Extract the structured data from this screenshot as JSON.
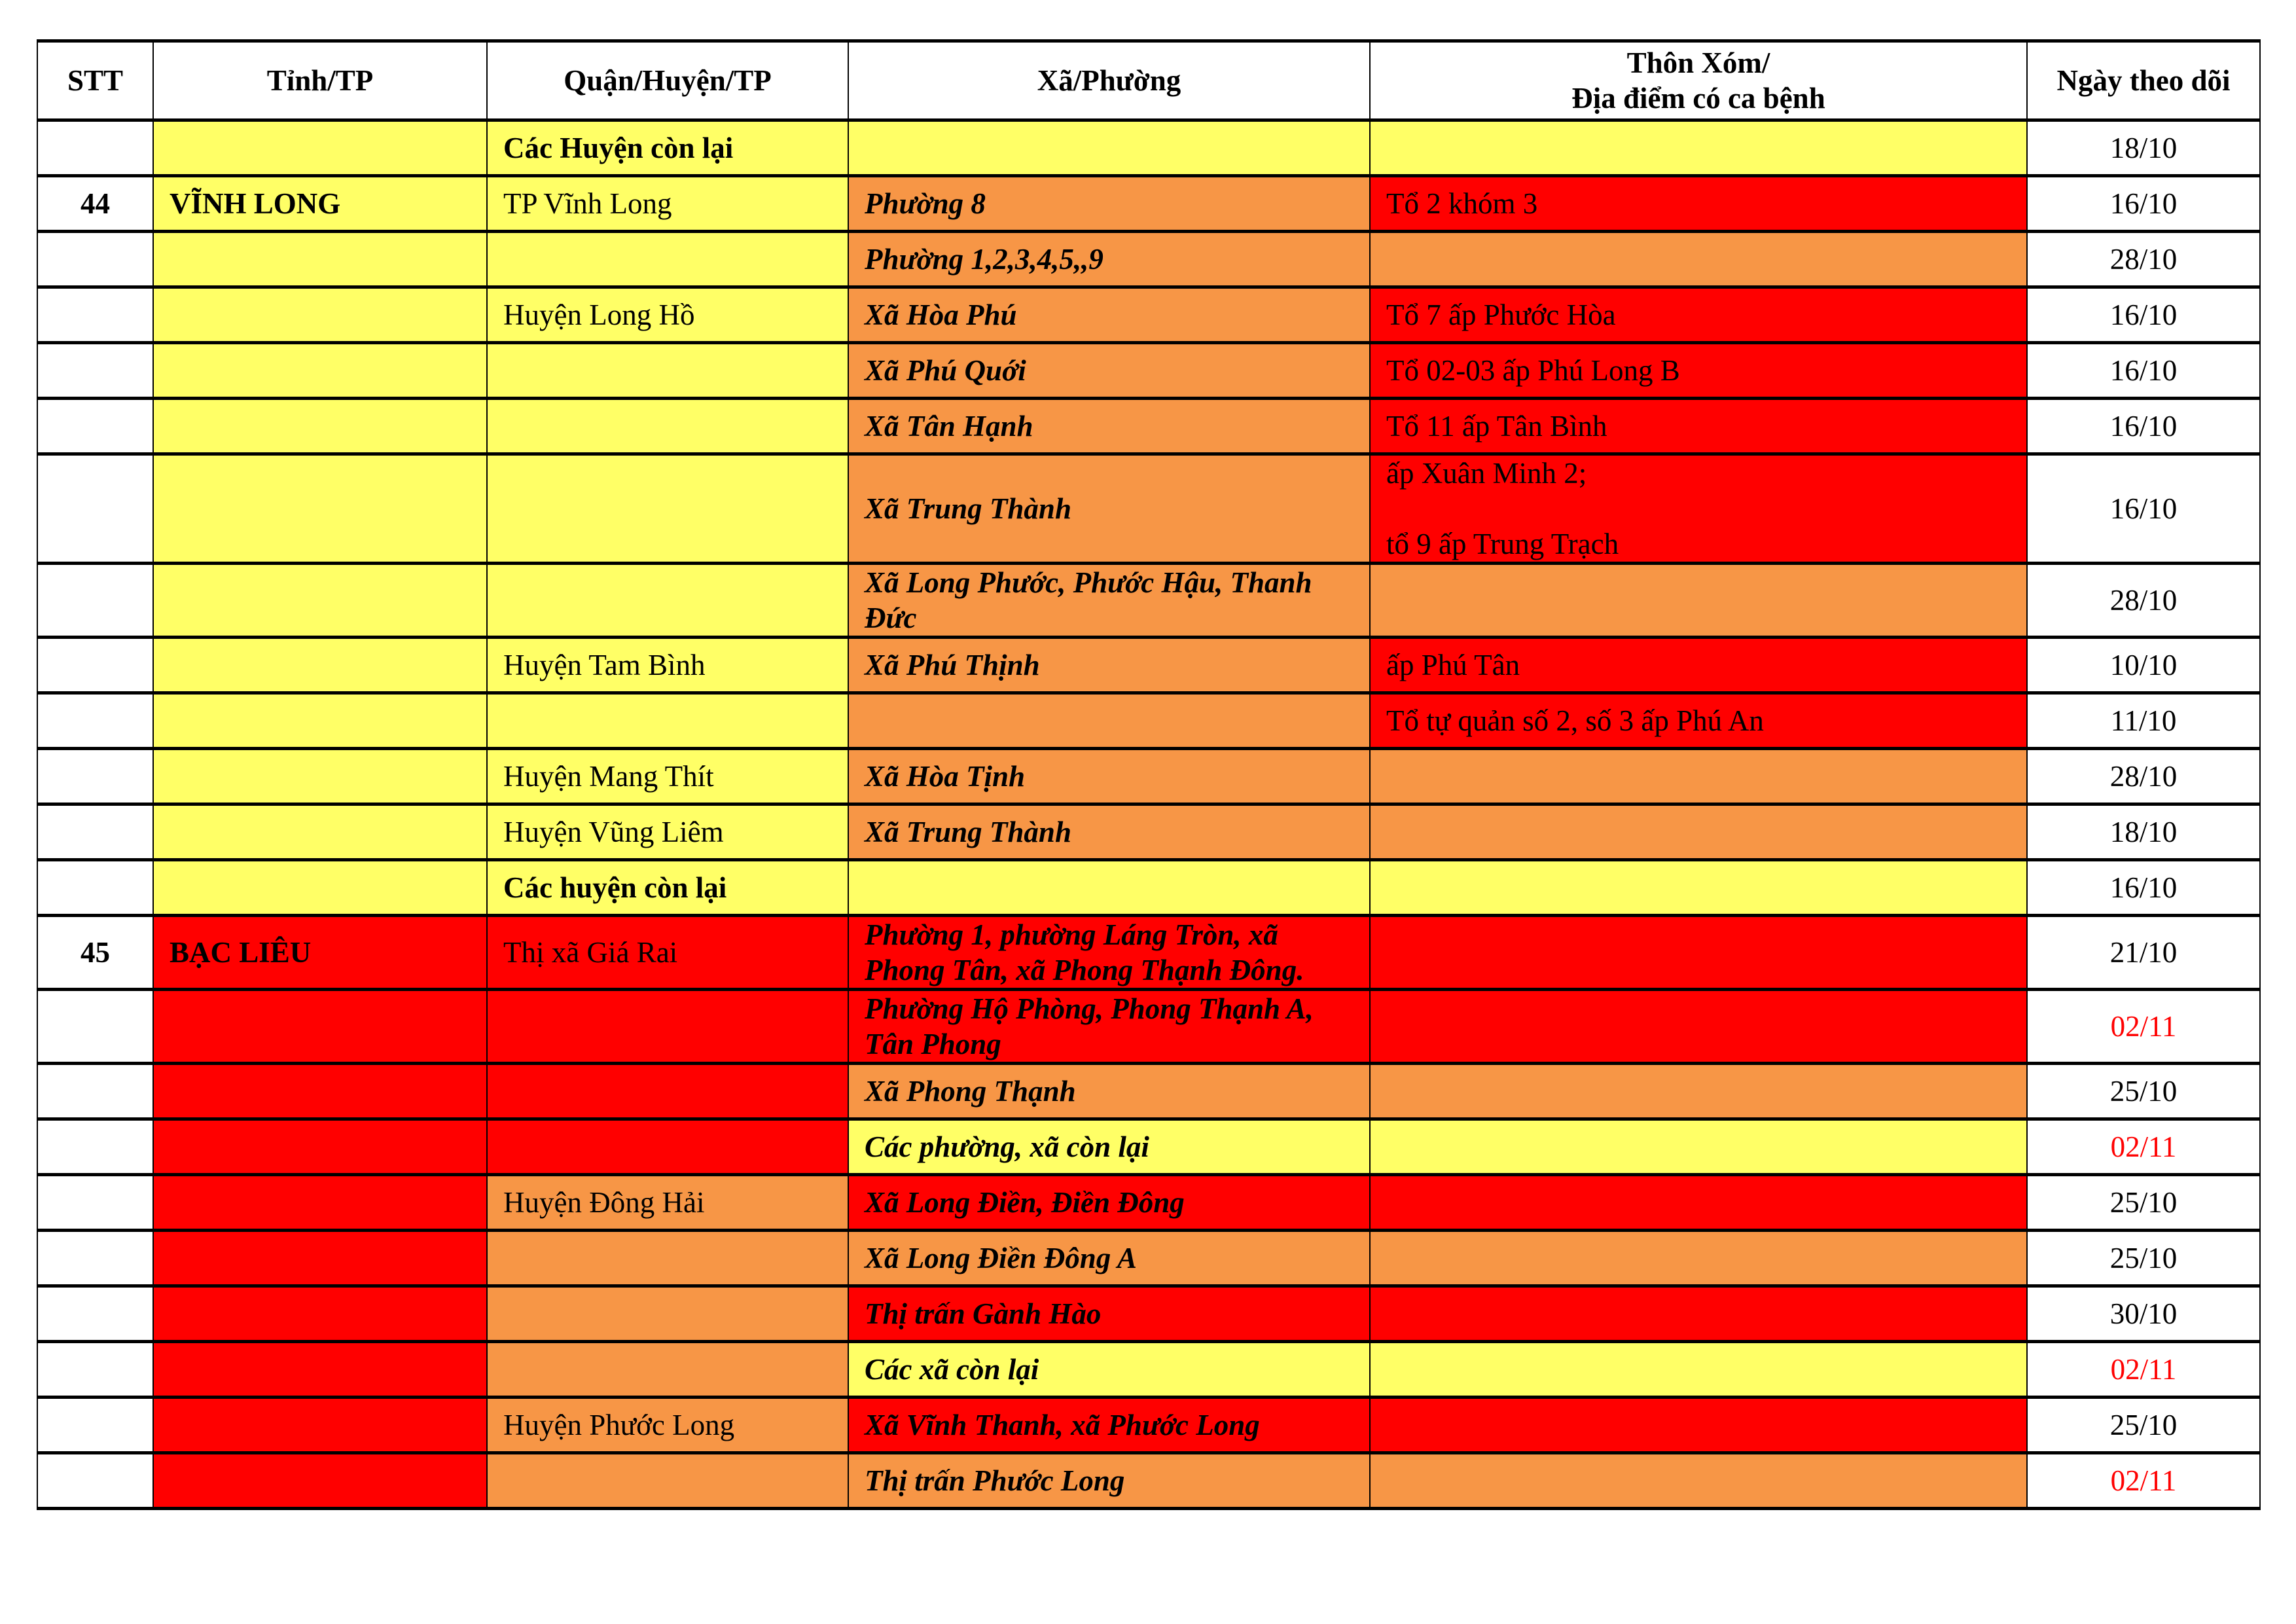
{
  "colors": {
    "Y": "#FFFF66",
    "O": "#F79646",
    "R": "#FF0000",
    "W": "#FFFFFF",
    "date_red": "#FF0000"
  },
  "headers": [
    "STT",
    "Tỉnh/TP",
    "Quận/Huyện/TP",
    "Xã/Phường",
    "Thôn Xóm/\nĐịa điểm có ca bệnh",
    "Ngày theo dõi"
  ],
  "rows": [
    {
      "stt": "",
      "tinh": "",
      "quan": "Các Huyện còn lại",
      "quan_bold": true,
      "xa": "",
      "thon": "",
      "date": "18/10",
      "c": [
        "Y",
        "Y",
        "Y",
        "Y"
      ]
    },
    {
      "stt": "44",
      "tinh": "VĨNH LONG",
      "quan": "TP Vĩnh Long",
      "xa": "Phường 8",
      "thon": "Tổ 2 khóm 3",
      "date": "16/10",
      "c": [
        "Y",
        "Y",
        "O",
        "R"
      ]
    },
    {
      "stt": "",
      "tinh": "",
      "quan": "",
      "xa": "Phường 1,2,3,4,5,,9",
      "thon": "",
      "date": "28/10",
      "c": [
        "Y",
        "Y",
        "O",
        "O"
      ]
    },
    {
      "stt": "",
      "tinh": "",
      "quan": "Huyện Long Hồ",
      "xa": "Xã Hòa Phú",
      "thon": "Tổ 7 ấp Phước Hòa",
      "date": "16/10",
      "c": [
        "Y",
        "Y",
        "O",
        "R"
      ]
    },
    {
      "stt": "",
      "tinh": "",
      "quan": "",
      "xa": "Xã Phú Quới",
      "thon": "Tổ 02-03 ấp Phú Long B",
      "date": "16/10",
      "c": [
        "Y",
        "Y",
        "O",
        "R"
      ]
    },
    {
      "stt": "",
      "tinh": "",
      "quan": "",
      "xa": "Xã Tân Hạnh",
      "thon": "Tổ 11 ấp Tân Bình",
      "date": "16/10",
      "c": [
        "Y",
        "Y",
        "O",
        "R"
      ]
    },
    {
      "stt": "",
      "tinh": "",
      "quan": "",
      "xa": "Xã Trung Thành",
      "thon": "ấp Xuân Minh 2;\n\ntổ 9 ấp Trung Trạch",
      "date": "16/10",
      "c": [
        "Y",
        "Y",
        "O",
        "R"
      ]
    },
    {
      "stt": "",
      "tinh": "",
      "quan": "",
      "xa": "Xã Long Phước, Phước Hậu, Thanh Đức",
      "thon": "",
      "date": "28/10",
      "c": [
        "Y",
        "Y",
        "O",
        "O"
      ]
    },
    {
      "stt": "",
      "tinh": "",
      "quan": "Huyện Tam Bình",
      "xa": "Xã Phú Thịnh",
      "thon": "ấp Phú Tân",
      "date": "10/10",
      "c": [
        "Y",
        "Y",
        "O",
        "R"
      ]
    },
    {
      "stt": "",
      "tinh": "",
      "quan": "",
      "xa": "",
      "thon": "Tổ tự quản số 2, số 3 ấp Phú An",
      "date": "11/10",
      "c": [
        "Y",
        "Y",
        "O",
        "R"
      ]
    },
    {
      "stt": "",
      "tinh": "",
      "quan": "Huyện Mang Thít",
      "xa": "Xã Hòa Tịnh",
      "thon": "",
      "date": "28/10",
      "c": [
        "Y",
        "Y",
        "O",
        "O"
      ]
    },
    {
      "stt": "",
      "tinh": "",
      "quan": "Huyện Vũng Liêm",
      "xa": "Xã Trung Thành",
      "thon": "",
      "date": "18/10",
      "c": [
        "Y",
        "Y",
        "O",
        "O"
      ]
    },
    {
      "stt": "",
      "tinh": "",
      "quan": "Các huyện còn lại",
      "quan_bold": true,
      "xa": "",
      "thon": "",
      "date": "16/10",
      "c": [
        "Y",
        "Y",
        "Y",
        "Y"
      ]
    },
    {
      "stt": "45",
      "tinh": "BẠC LIÊU",
      "quan": "Thị xã Giá Rai",
      "xa": "Phường 1, phường Láng Tròn, xã Phong Tân, xã Phong Thạnh Đông.",
      "thon": "",
      "date": "21/10",
      "c": [
        "R",
        "R",
        "R",
        "R"
      ]
    },
    {
      "stt": "",
      "tinh": "",
      "quan": "",
      "xa": "Phường Hộ Phòng, Phong Thạnh A, Tân Phong",
      "thon": "",
      "date": "02/11",
      "date_red": true,
      "c": [
        "R",
        "R",
        "R",
        "R"
      ]
    },
    {
      "stt": "",
      "tinh": "",
      "quan": "",
      "xa": "Xã Phong Thạnh",
      "thon": "",
      "date": "25/10",
      "c": [
        "R",
        "R",
        "O",
        "O"
      ]
    },
    {
      "stt": "",
      "tinh": "",
      "quan": "",
      "xa": "Các phường, xã còn lại",
      "thon": "",
      "date": "02/11",
      "date_red": true,
      "c": [
        "R",
        "R",
        "Y",
        "Y"
      ]
    },
    {
      "stt": "",
      "tinh": "",
      "quan": "Huyện Đông Hải",
      "xa": "Xã Long Điền, Điền Đông",
      "thon": "",
      "date": "25/10",
      "c": [
        "R",
        "O",
        "R",
        "R"
      ]
    },
    {
      "stt": "",
      "tinh": "",
      "quan": "",
      "xa": "Xã Long Điền Đông A",
      "thon": "",
      "date": "25/10",
      "c": [
        "R",
        "O",
        "O",
        "O"
      ]
    },
    {
      "stt": "",
      "tinh": "",
      "quan": "",
      "xa": "Thị trấn Gành Hào",
      "thon": "",
      "date": "30/10",
      "c": [
        "R",
        "O",
        "R",
        "R"
      ]
    },
    {
      "stt": "",
      "tinh": "",
      "quan": "",
      "xa": "Các xã còn lại",
      "thon": "",
      "date": "02/11",
      "date_red": true,
      "c": [
        "R",
        "O",
        "Y",
        "Y"
      ]
    },
    {
      "stt": "",
      "tinh": "",
      "quan": "Huyện Phước Long",
      "xa": "Xã Vĩnh Thanh, xã Phước Long",
      "thon": "",
      "date": "25/10",
      "c": [
        "R",
        "O",
        "R",
        "R"
      ]
    },
    {
      "stt": "",
      "tinh": "",
      "quan": "",
      "xa": "Thị trấn Phước Long",
      "thon": "",
      "date": "02/11",
      "date_red": true,
      "c": [
        "R",
        "O",
        "O",
        "O"
      ]
    }
  ]
}
